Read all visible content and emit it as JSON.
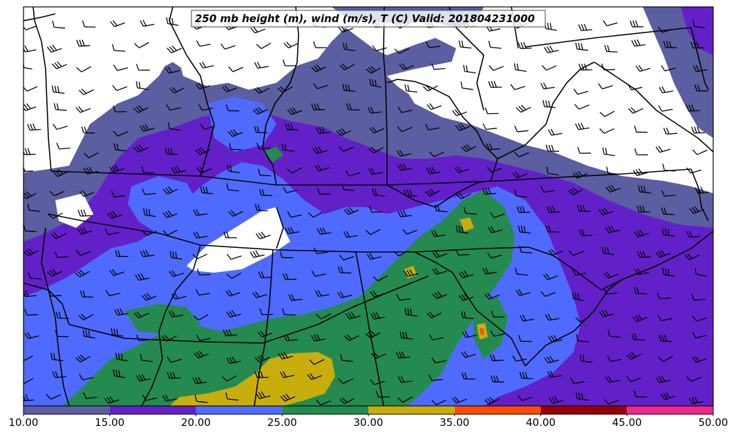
{
  "map": {
    "title": "250 mb height (m), wind (m/s), T (C) Valid: 201804231000"
  },
  "colorbar": {
    "bins": [
      {
        "from": "10.00",
        "to": "15.00",
        "color": "#5b5ea0"
      },
      {
        "from": "15.00",
        "to": "20.00",
        "color": "#6320c8"
      },
      {
        "from": "20.00",
        "to": "25.00",
        "color": "#4f6bff"
      },
      {
        "from": "25.00",
        "to": "30.00",
        "color": "#248a4f"
      },
      {
        "from": "30.00",
        "to": "35.00",
        "color": "#c8ae0c"
      },
      {
        "from": "35.00",
        "to": "40.00",
        "color": "#ff4d00"
      },
      {
        "from": "40.00",
        "to": "45.00",
        "color": "#980000"
      },
      {
        "from": "45.00",
        "to": "50.00",
        "color": "#ee2a88"
      }
    ],
    "tick_labels": [
      "10.00",
      "15.00",
      "20.00",
      "25.00",
      "30.00",
      "35.00",
      "40.00",
      "45.00",
      "50.00"
    ]
  }
}
